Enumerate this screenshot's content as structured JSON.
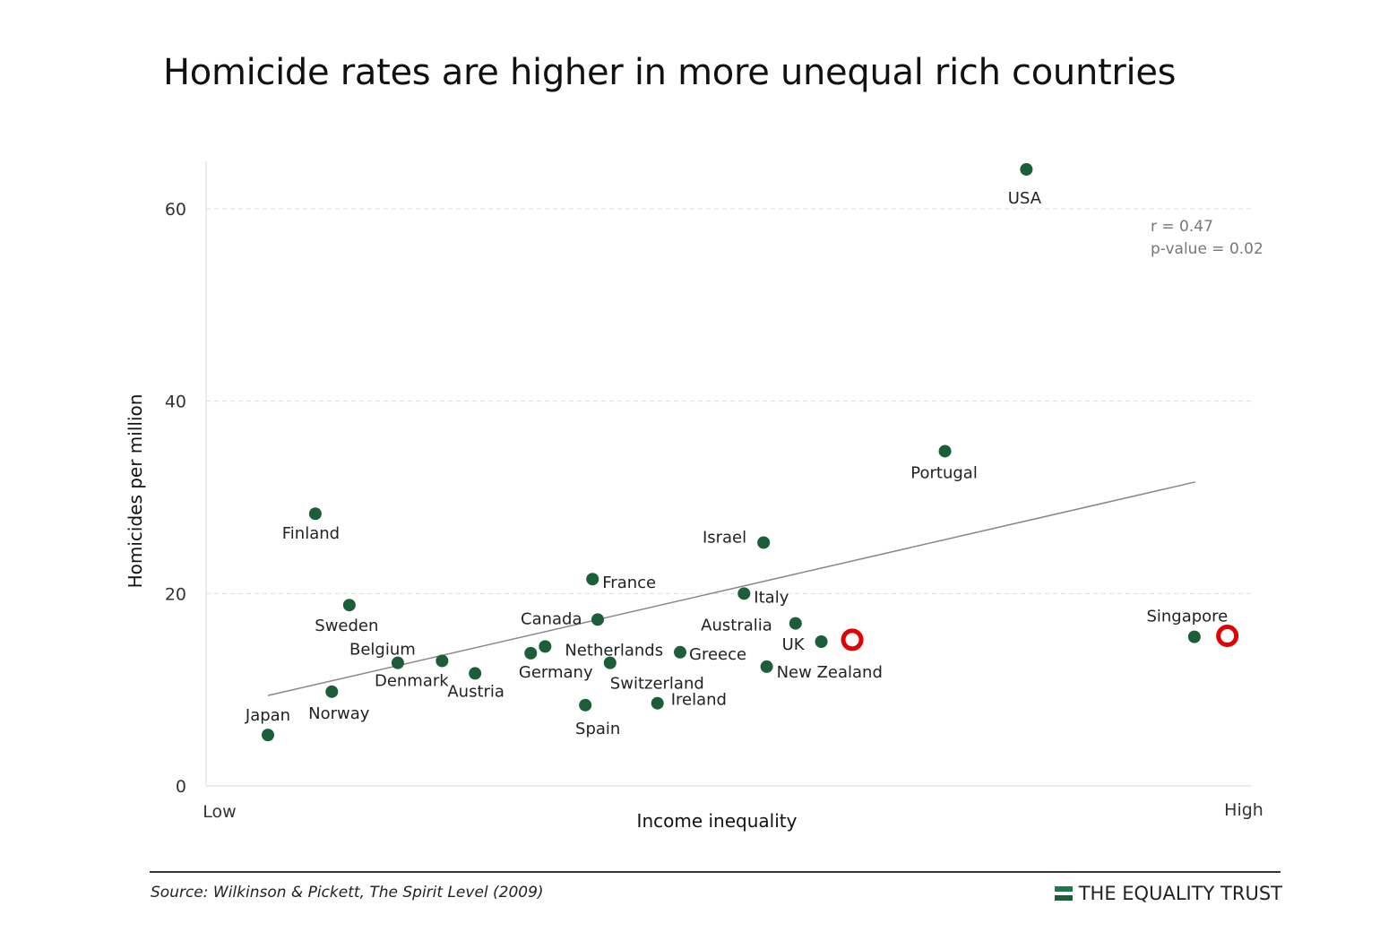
{
  "title": "Homicide rates are higher in more unequal rich countries",
  "colors": {
    "point": "#1c5e38",
    "trend": "#888888",
    "grid": "#dddddd",
    "highlight": "#e30000",
    "brand": "#1a7a4a"
  },
  "chart_data": {
    "type": "scatter",
    "title": "Homicide rates are higher in more unequal rich countries",
    "xlabel": "Income inequality",
    "ylabel": "Homicides per million",
    "x_tick_labels": [
      "Low",
      "High"
    ],
    "xlim": [
      0,
      100
    ],
    "ylim": [
      0,
      65
    ],
    "yticks": [
      0,
      20,
      40,
      60
    ],
    "grid": "horizontal dashed",
    "stats": {
      "r": "r = 0.47",
      "p": "p-value = 0.02"
    },
    "trend": {
      "x": [
        6,
        96
      ],
      "y": [
        9.4,
        31.6
      ]
    },
    "points": [
      {
        "name": "Japan",
        "x": 6,
        "y": 5.3
      },
      {
        "name": "Finland",
        "x": 10.6,
        "y": 28.3
      },
      {
        "name": "Norway",
        "x": 12.2,
        "y": 9.8
      },
      {
        "name": "Sweden",
        "x": 13.9,
        "y": 18.8
      },
      {
        "name": "Belgium",
        "x": 18.6,
        "y": 12.8
      },
      {
        "name": "Denmark",
        "x": 22.9,
        "y": 13.0
      },
      {
        "name": "Austria",
        "x": 26.1,
        "y": 11.7
      },
      {
        "name": "Germany",
        "x": 31.5,
        "y": 13.8
      },
      {
        "name": "Netherlands",
        "x": 32.9,
        "y": 14.5
      },
      {
        "name": "Spain",
        "x": 36.8,
        "y": 8.4
      },
      {
        "name": "France",
        "x": 37.5,
        "y": 21.5
      },
      {
        "name": "Canada",
        "x": 38.0,
        "y": 17.3
      },
      {
        "name": "Switzerland",
        "x": 39.2,
        "y": 12.8
      },
      {
        "name": "Ireland",
        "x": 43.8,
        "y": 8.6
      },
      {
        "name": "Greece",
        "x": 46.0,
        "y": 13.9
      },
      {
        "name": "Italy",
        "x": 52.2,
        "y": 20.0
      },
      {
        "name": "Israel",
        "x": 54.1,
        "y": 25.3
      },
      {
        "name": "New Zealand",
        "x": 54.4,
        "y": 12.4
      },
      {
        "name": "Australia",
        "x": 57.2,
        "y": 16.9
      },
      {
        "name": "UK",
        "x": 59.7,
        "y": 15.0
      },
      {
        "name": "Portugal",
        "x": 71.7,
        "y": 34.8
      },
      {
        "name": "USA",
        "x": 79.6,
        "y": 64.1
      },
      {
        "name": "Singapore",
        "x": 95.9,
        "y": 15.5
      }
    ],
    "highlighted_markers": [
      {
        "x": 62.7,
        "y": 15.2
      },
      {
        "x": 99.1,
        "y": 15.6
      }
    ]
  },
  "footer": {
    "source": "Source: Wilkinson & Pickett, The Spirit Level (2009)",
    "brand": "THE EQUALITY TRUST"
  }
}
